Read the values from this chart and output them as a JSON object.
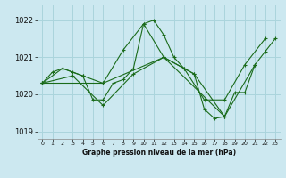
{
  "title": "Graphe pression niveau de la mer (hPa)",
  "background_color": "#cce8f0",
  "grid_color": "#aad4dc",
  "line_color": "#1a6b1a",
  "xlim": [
    -0.5,
    23.5
  ],
  "ylim": [
    1018.8,
    1022.4
  ],
  "yticks": [
    1019,
    1020,
    1021,
    1022
  ],
  "xticks": [
    0,
    1,
    2,
    3,
    4,
    5,
    6,
    7,
    8,
    9,
    10,
    11,
    12,
    13,
    14,
    15,
    16,
    17,
    18,
    19,
    20,
    21,
    22,
    23
  ],
  "series": [
    {
      "x": [
        0,
        1,
        2,
        3,
        4,
        5,
        6,
        7,
        8,
        9,
        10,
        11,
        12,
        13,
        14,
        15,
        16,
        17,
        18,
        19,
        20,
        21,
        22,
        23
      ],
      "y": [
        1020.3,
        1020.6,
        1020.7,
        1020.6,
        1020.5,
        1019.85,
        1019.85,
        1020.3,
        1020.4,
        1020.7,
        1021.9,
        1022.0,
        1021.6,
        1021.0,
        1020.7,
        1020.55,
        1019.6,
        1019.35,
        1019.4,
        1020.05,
        1020.05,
        1020.8,
        1021.15,
        1021.5
      ]
    },
    {
      "x": [
        0,
        2,
        4,
        6,
        8,
        10,
        12,
        14,
        16,
        18,
        20,
        22
      ],
      "y": [
        1020.3,
        1020.7,
        1020.5,
        1020.3,
        1021.2,
        1021.9,
        1021.0,
        1020.7,
        1019.85,
        1019.85,
        1020.8,
        1021.5
      ]
    },
    {
      "x": [
        0,
        3,
        6,
        9,
        12,
        15,
        18,
        21
      ],
      "y": [
        1020.3,
        1020.5,
        1019.7,
        1020.55,
        1021.0,
        1020.55,
        1019.4,
        1020.8
      ]
    },
    {
      "x": [
        0,
        6,
        12,
        18
      ],
      "y": [
        1020.3,
        1020.3,
        1021.0,
        1019.4
      ]
    }
  ],
  "xlabel_fontsize": 5.5,
  "xlabel_fontweight": "bold",
  "ytick_fontsize": 6.0,
  "xtick_fontsize": 4.5
}
